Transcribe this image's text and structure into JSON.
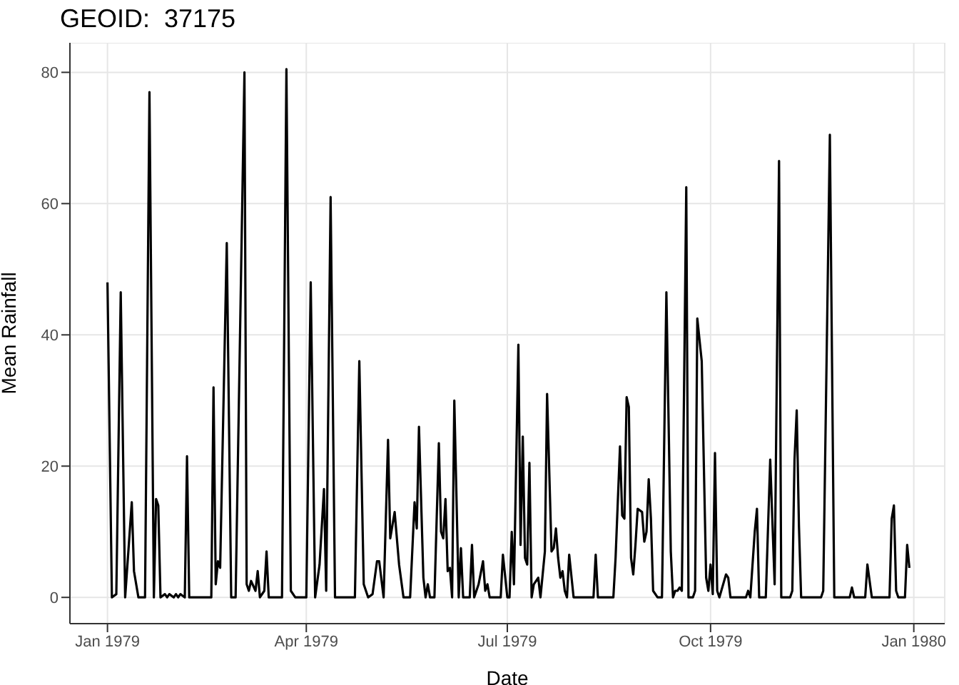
{
  "chart_data": {
    "type": "line",
    "title": "GEOID:  37175",
    "xlabel": "Date",
    "ylabel": "Mean Rainfall",
    "color": "#000000",
    "grid": true,
    "legend": false,
    "marker": "none",
    "line_style": "solid",
    "x": [
      "1979-01-01",
      "1979-01-03",
      "1979-01-05",
      "1979-01-07",
      "1979-01-09",
      "1979-01-12",
      "1979-01-13",
      "1979-01-15",
      "1979-01-18",
      "1979-01-20",
      "1979-01-22",
      "1979-01-23",
      "1979-01-24",
      "1979-01-25",
      "1979-01-27",
      "1979-01-28",
      "1979-01-29",
      "1979-01-31",
      "1979-02-01",
      "1979-02-02",
      "1979-02-03",
      "1979-02-05",
      "1979-02-06",
      "1979-02-07",
      "1979-02-17",
      "1979-02-18",
      "1979-02-19",
      "1979-02-20",
      "1979-02-21",
      "1979-02-24",
      "1979-02-26",
      "1979-02-28",
      "1979-03-04",
      "1979-03-05",
      "1979-03-06",
      "1979-03-07",
      "1979-03-09",
      "1979-03-10",
      "1979-03-11",
      "1979-03-13",
      "1979-03-14",
      "1979-03-15",
      "1979-03-21",
      "1979-03-23",
      "1979-03-25",
      "1979-03-27",
      "1979-04-01",
      "1979-04-03",
      "1979-04-05",
      "1979-04-07",
      "1979-04-09",
      "1979-04-10",
      "1979-04-12",
      "1979-04-14",
      "1979-04-23",
      "1979-04-25",
      "1979-04-27",
      "1979-04-29",
      "1979-05-01",
      "1979-05-03",
      "1979-05-04",
      "1979-05-06",
      "1979-05-08",
      "1979-05-09",
      "1979-05-11",
      "1979-05-13",
      "1979-05-15",
      "1979-05-18",
      "1979-05-20",
      "1979-05-21",
      "1979-05-22",
      "1979-05-24",
      "1979-05-25",
      "1979-05-26",
      "1979-05-27",
      "1979-05-29",
      "1979-05-31",
      "1979-06-01",
      "1979-06-02",
      "1979-06-03",
      "1979-06-04",
      "1979-06-05",
      "1979-06-06",
      "1979-06-07",
      "1979-06-09",
      "1979-06-10",
      "1979-06-11",
      "1979-06-14",
      "1979-06-15",
      "1979-06-16",
      "1979-06-18",
      "1979-06-20",
      "1979-06-21",
      "1979-06-22",
      "1979-06-23",
      "1979-06-28",
      "1979-06-29",
      "1979-07-01",
      "1979-07-02",
      "1979-07-03",
      "1979-07-04",
      "1979-07-06",
      "1979-07-07",
      "1979-07-08",
      "1979-07-09",
      "1979-07-10",
      "1979-07-11",
      "1979-07-12",
      "1979-07-13",
      "1979-07-15",
      "1979-07-16",
      "1979-07-18",
      "1979-07-19",
      "1979-07-21",
      "1979-07-22",
      "1979-07-23",
      "1979-07-24",
      "1979-07-25",
      "1979-07-26",
      "1979-07-27",
      "1979-07-28",
      "1979-07-29",
      "1979-07-31",
      "1979-08-09",
      "1979-08-10",
      "1979-08-11",
      "1979-08-18",
      "1979-08-19",
      "1979-08-21",
      "1979-08-22",
      "1979-08-23",
      "1979-08-24",
      "1979-08-25",
      "1979-08-26",
      "1979-08-27",
      "1979-08-28",
      "1979-08-29",
      "1979-08-31",
      "1979-09-01",
      "1979-09-02",
      "1979-09-03",
      "1979-09-04",
      "1979-09-05",
      "1979-09-07",
      "1979-09-09",
      "1979-09-11",
      "1979-09-13",
      "1979-09-14",
      "1979-09-15",
      "1979-09-16",
      "1979-09-17",
      "1979-09-18",
      "1979-09-20",
      "1979-09-21",
      "1979-09-23",
      "1979-09-24",
      "1979-09-25",
      "1979-09-27",
      "1979-09-29",
      "1979-09-30",
      "1979-10-01",
      "1979-10-02",
      "1979-10-03",
      "1979-10-04",
      "1979-10-05",
      "1979-10-08",
      "1979-10-09",
      "1979-10-10",
      "1979-10-17",
      "1979-10-18",
      "1979-10-19",
      "1979-10-21",
      "1979-10-22",
      "1979-10-23",
      "1979-10-26",
      "1979-10-28",
      "1979-10-30",
      "1979-11-01",
      "1979-11-02",
      "1979-11-06",
      "1979-11-07",
      "1979-11-08",
      "1979-11-09",
      "1979-11-10",
      "1979-11-11",
      "1979-11-20",
      "1979-11-21",
      "1979-11-24",
      "1979-11-26",
      "1979-12-03",
      "1979-12-04",
      "1979-12-05",
      "1979-12-10",
      "1979-12-11",
      "1979-12-13",
      "1979-12-21",
      "1979-12-22",
      "1979-12-23",
      "1979-12-24",
      "1979-12-25",
      "1979-12-28",
      "1979-12-29",
      "1979-12-30"
    ],
    "values": [
      48,
      0,
      0.5,
      46.5,
      0,
      14.5,
      4,
      0,
      0,
      77,
      0,
      15,
      14,
      0,
      0.5,
      0,
      0.5,
      0,
      0.5,
      0,
      0.5,
      0,
      21.5,
      0,
      0,
      32,
      2,
      5.5,
      4.5,
      54,
      0,
      0,
      80,
      2,
      1,
      2.5,
      1,
      4,
      0,
      1,
      7,
      0,
      0,
      80.5,
      1,
      0,
      0,
      48,
      0,
      5,
      16.5,
      1,
      61,
      0,
      0,
      36,
      2,
      0,
      0.5,
      5.5,
      5.5,
      0,
      24,
      9,
      13,
      5,
      0,
      0,
      14.5,
      10.5,
      26,
      3,
      0,
      2,
      0,
      0,
      23.5,
      10,
      9,
      15,
      4,
      4.5,
      0,
      30,
      0,
      7.5,
      0,
      0,
      8,
      0,
      2,
      5.5,
      1,
      2,
      0,
      0,
      6.5,
      0,
      0,
      10,
      2,
      38.5,
      8,
      24.5,
      6,
      5,
      20.5,
      0,
      2,
      3,
      0,
      7,
      31,
      7,
      7.5,
      10.5,
      6,
      3,
      4,
      1,
      0,
      6.5,
      0,
      0,
      6.5,
      0,
      0,
      6,
      23,
      12.5,
      12,
      30.5,
      29,
      6,
      3.5,
      8,
      13.5,
      13,
      8.5,
      10,
      18,
      12,
      1,
      0,
      0,
      46.5,
      7,
      0,
      1,
      1,
      1.5,
      1,
      62.5,
      0,
      0,
      1,
      42.5,
      36,
      3,
      1,
      5,
      0.5,
      22,
      1,
      0,
      3.5,
      3,
      0,
      0,
      1,
      0,
      10,
      13.5,
      0,
      0,
      21,
      2,
      66.5,
      0,
      0,
      1,
      21,
      28.5,
      11,
      0,
      0,
      1,
      70.5,
      0,
      0,
      1.5,
      0,
      0,
      5,
      0,
      0,
      12,
      14,
      1,
      0,
      0,
      8,
      4.5
    ],
    "xlim": [
      "1978-12-15",
      "1980-01-15"
    ],
    "xticks": [
      {
        "value": "1979-01-01",
        "label": "Jan 1979"
      },
      {
        "value": "1979-04-01",
        "label": "Apr 1979"
      },
      {
        "value": "1979-07-01",
        "label": "Jul 1979"
      },
      {
        "value": "1979-10-01",
        "label": "Oct 1979"
      },
      {
        "value": "1980-01-01",
        "label": "Jan 1980"
      }
    ],
    "ylim": [
      -4,
      84.5
    ],
    "yticks": [
      0,
      20,
      40,
      60,
      80
    ]
  }
}
